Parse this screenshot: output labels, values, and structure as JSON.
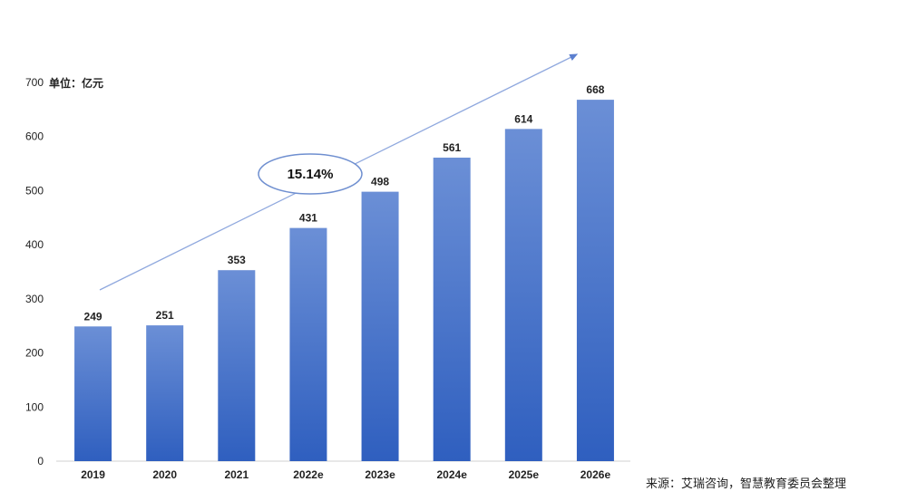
{
  "chart_data": {
    "type": "bar",
    "categories": [
      "2019",
      "2020",
      "2021",
      "2022e",
      "2023e",
      "2024e",
      "2025e",
      "2026e"
    ],
    "values": [
      249,
      251,
      353,
      431,
      498,
      561,
      614,
      668
    ],
    "ylim": [
      0,
      700
    ],
    "yticks": [
      0,
      100,
      200,
      300,
      400,
      500,
      600,
      700
    ],
    "unit_label": "单位：亿元",
    "cagr_label": "15.14%",
    "bar_color_top": "#6b8fd6",
    "bar_color_bottom": "#2f5fbf",
    "trend_color": "#8fa8de",
    "legend": "none",
    "grid": false
  },
  "source": "来源：艾瑞咨询，智慧教育委员会整理"
}
